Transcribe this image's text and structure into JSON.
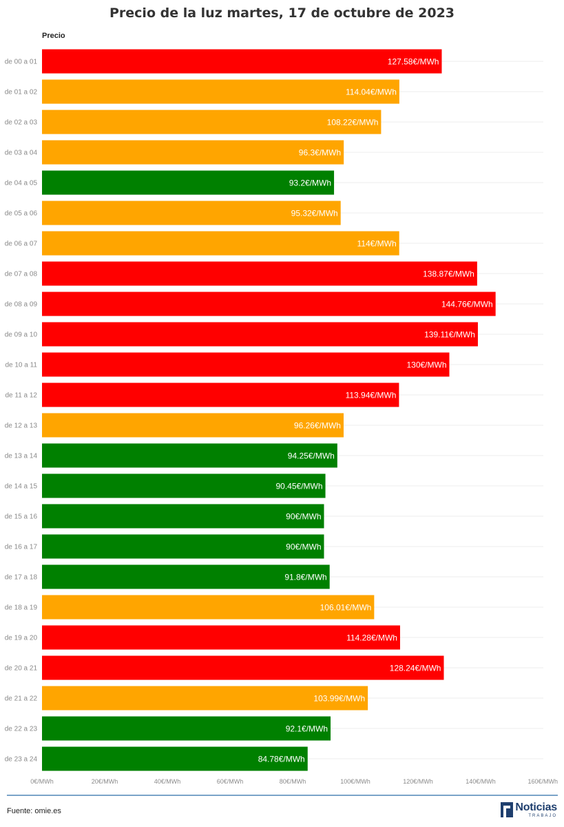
{
  "chart_data": {
    "type": "bar",
    "orientation": "horizontal",
    "title": "Precio de la luz martes, 17 de octubre de 2023",
    "series_label": "Precio",
    "categories": [
      "de 00 a 01",
      "de 01 a 02",
      "de 02 a 03",
      "de 03 a 04",
      "de 04 a 05",
      "de 05 a 06",
      "de 06 a 07",
      "de 07 a 08",
      "de 08 a 09",
      "de 09 a 10",
      "de 10 a 11",
      "de 11 a 12",
      "de 12 a 13",
      "de 13 a 14",
      "de 14 a 15",
      "de 15 a 16",
      "de 16 a 17",
      "de 17 a 18",
      "de 18 a 19",
      "de 19 a 20",
      "de 20 a 21",
      "de 21 a 22",
      "de 22 a 23",
      "de 23 a 24"
    ],
    "values": [
      127.58,
      114.04,
      108.22,
      96.3,
      93.2,
      95.32,
      114,
      138.87,
      144.76,
      139.11,
      130,
      113.94,
      96.26,
      94.25,
      90.45,
      90,
      90,
      91.8,
      106.01,
      114.28,
      128.24,
      103.99,
      92.1,
      84.78
    ],
    "value_labels": [
      "127.58€/MWh",
      "114.04€/MWh",
      "108.22€/MWh",
      "96.3€/MWh",
      "93.2€/MWh",
      "95.32€/MWh",
      "114€/MWh",
      "138.87€/MWh",
      "144.76€/MWh",
      "139.11€/MWh",
      "130€/MWh",
      "113.94€/MWh",
      "96.26€/MWh",
      "94.25€/MWh",
      "90.45€/MWh",
      "90€/MWh",
      "90€/MWh",
      "91.8€/MWh",
      "106.01€/MWh",
      "114.28€/MWh",
      "128.24€/MWh",
      "103.99€/MWh",
      "92.1€/MWh",
      "84.78€/MWh"
    ],
    "bar_colors": [
      "red",
      "orange",
      "orange",
      "orange",
      "green",
      "orange",
      "orange",
      "red",
      "red",
      "red",
      "red",
      "red",
      "orange",
      "green",
      "green",
      "green",
      "green",
      "green",
      "orange",
      "red",
      "red",
      "orange",
      "green",
      "green"
    ],
    "xlim": [
      0,
      160
    ],
    "x_ticks": [
      0,
      20,
      40,
      60,
      80,
      100,
      120,
      140,
      160
    ],
    "x_tick_labels": [
      "0€/MWh",
      "20€/MWh",
      "40€/MWh",
      "60€/MWh",
      "80€/MWh",
      "100€/MWh",
      "120€/MWh",
      "140€/MWh",
      "160€/MWh"
    ],
    "grid": true
  },
  "colors": {
    "red": "#ff0000",
    "orange": "#ffa500",
    "green": "#008000",
    "footer_rule": "#7aa3c8",
    "logo": "#1f3f6e"
  },
  "footer": {
    "source": "Fuente: omie.es",
    "logo_word": "Noticias",
    "logo_sub": "TRABAJO"
  }
}
